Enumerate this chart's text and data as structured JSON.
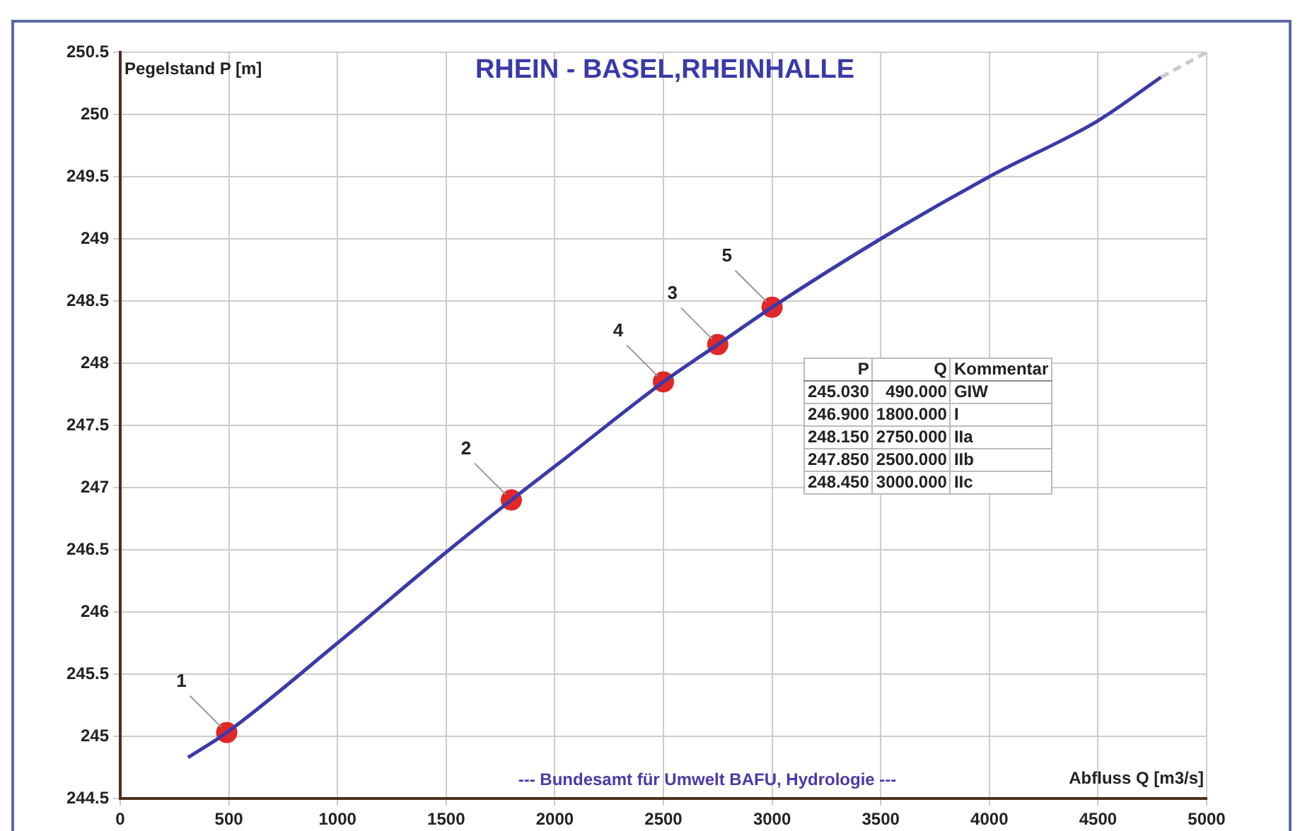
{
  "chart_data": {
    "type": "line",
    "title": "RHEIN - BASEL,RHEINHALLE",
    "xlabel": "Abfluss Q [m3/s]",
    "ylabel": "Pegelstand P [m]",
    "xlim": [
      0,
      5000
    ],
    "xticks": [
      0,
      500,
      1000,
      1500,
      2000,
      2500,
      3000,
      3500,
      4000,
      4500,
      5000
    ],
    "ylim": [
      244.5,
      250.5
    ],
    "yticks": [
      244.5,
      245,
      245.5,
      246,
      246.5,
      247,
      247.5,
      248,
      248.5,
      249,
      249.5,
      250,
      250.5
    ],
    "grid": true,
    "legend": false,
    "series": [
      {
        "color": "#3a3aa8",
        "x": [
          312,
          490,
          1000,
          1500,
          1800,
          2000,
          2500,
          2750,
          3000,
          3500,
          4000,
          4500,
          4790
        ],
        "values": [
          244.83,
          245.03,
          245.75,
          246.48,
          246.9,
          247.17,
          247.85,
          248.15,
          248.45,
          249.0,
          249.5,
          249.95,
          250.3
        ]
      },
      {
        "color": "#c8c8d0",
        "line_style": "dashed",
        "x": [
          4790,
          5000
        ],
        "values": [
          250.3,
          250.5
        ]
      },
      {
        "type": "scatter",
        "color": "#e02828",
        "marker": "circle",
        "x": [
          490,
          1800,
          2750,
          2500,
          3000
        ],
        "values": [
          245.03,
          246.9,
          248.15,
          247.85,
          248.45
        ]
      }
    ],
    "annotations": [
      {
        "text": "1",
        "x": 490,
        "y": 245.03
      },
      {
        "text": "2",
        "x": 1800,
        "y": 246.9
      },
      {
        "text": "3",
        "x": 2750,
        "y": 248.15
      },
      {
        "text": "4",
        "x": 2500,
        "y": 247.85
      },
      {
        "text": "5",
        "x": 3000,
        "y": 248.45
      },
      "P Q Kommentar",
      "245.030 490.000 GIW",
      "246.900 1800.000 I",
      "248.150 2750.000 IIa",
      "247.850 2500.000 IIb",
      "248.450 3000.000 IIc",
      "--- Bundesamt für Umwelt BAFU, Hydrologie ---"
    ]
  }
}
